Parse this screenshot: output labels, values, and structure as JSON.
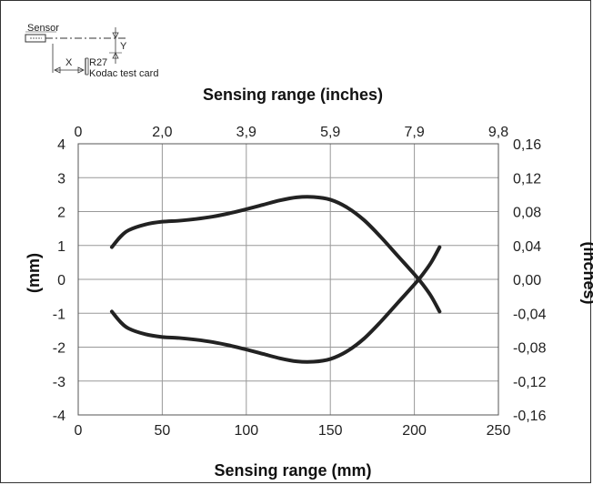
{
  "chart_data": {
    "type": "line",
    "xlabel": "Sensing range (mm)",
    "x2label": "Sensing range (inches)",
    "ylabel": "(mm)",
    "y2label": "(Inches)",
    "xlim": [
      0,
      250
    ],
    "ylim": [
      -4,
      4
    ],
    "x_ticks": [
      "0",
      "50",
      "100",
      "150",
      "200",
      "250"
    ],
    "x2_ticks": [
      "0",
      "2,0",
      "3,9",
      "5,9",
      "7,9",
      "9,8"
    ],
    "y_ticks": [
      "4",
      "3",
      "2",
      "1",
      "0",
      "-1",
      "-2",
      "-3",
      "-4"
    ],
    "y2_ticks": [
      "0,16",
      "0,12",
      "0,08",
      "0,04",
      "0,00",
      "-0,04",
      "-0,08",
      "-0,12",
      "-0,16"
    ],
    "grid": true,
    "series": [
      {
        "x": [
          20,
          25,
          30,
          40,
          50,
          60,
          70,
          80,
          90,
          100,
          110,
          120,
          130,
          140,
          150,
          160,
          170,
          180,
          190,
          200,
          205,
          210,
          215
        ],
        "y": [
          0.95,
          1.25,
          1.45,
          1.62,
          1.7,
          1.73,
          1.78,
          1.85,
          1.95,
          2.07,
          2.2,
          2.33,
          2.42,
          2.43,
          2.35,
          2.12,
          1.75,
          1.25,
          0.7,
          0.15,
          -0.15,
          -0.5,
          -0.95
        ],
        "color": "#222222"
      },
      {
        "x": [
          20,
          25,
          30,
          40,
          50,
          60,
          70,
          80,
          90,
          100,
          110,
          120,
          130,
          140,
          150,
          160,
          170,
          180,
          190,
          200,
          205,
          210,
          215
        ],
        "y": [
          -0.95,
          -1.25,
          -1.45,
          -1.62,
          -1.7,
          -1.73,
          -1.78,
          -1.85,
          -1.95,
          -2.07,
          -2.2,
          -2.33,
          -2.42,
          -2.43,
          -2.35,
          -2.12,
          -1.75,
          -1.25,
          -0.7,
          -0.15,
          0.15,
          0.5,
          0.95
        ],
        "color": "#222222"
      }
    ]
  },
  "diagram": {
    "sensor_label": "Sensor",
    "x_label": "X",
    "y_label": "Y",
    "reflector_label": "R27",
    "card_label": "Kodac test card"
  }
}
